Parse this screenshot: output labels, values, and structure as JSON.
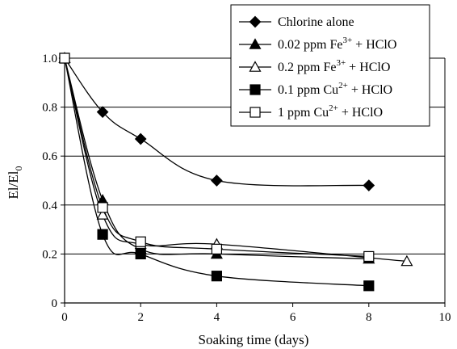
{
  "chart_data": {
    "type": "line",
    "title": "",
    "xlabel": "Soaking time (days)",
    "ylabel": {
      "main": "El/El",
      "sub": "0"
    },
    "xlim": [
      0,
      10
    ],
    "ylim": [
      0,
      1.0
    ],
    "xticks": [
      "0",
      "2",
      "4",
      "6",
      "8",
      "10"
    ],
    "yticks": [
      "0",
      "0.2",
      "0.4",
      "0.6",
      "0.8",
      "1.0"
    ],
    "grid": "horizontal",
    "legend_position": "top-right",
    "series": [
      {
        "name": "Chlorine alone",
        "legend": {
          "pre": "Chlorine alone",
          "sup": "",
          "post": ""
        },
        "marker": "diamond-filled",
        "x": [
          0,
          1,
          2,
          4,
          8
        ],
        "y": [
          1.0,
          0.78,
          0.67,
          0.5,
          0.48
        ]
      },
      {
        "name": "0.02 ppm Fe3+ + HClO",
        "legend": {
          "pre": "0.02 ppm Fe",
          "sup": "3+",
          "post": " + HClO"
        },
        "marker": "triangle-filled",
        "x": [
          0,
          1,
          2,
          4,
          8
        ],
        "y": [
          1.0,
          0.42,
          0.22,
          0.2,
          0.18
        ]
      },
      {
        "name": "0.2 ppm Fe3+ + HClO",
        "legend": {
          "pre": "0.2 ppm Fe",
          "sup": "3+",
          "post": " + HClO"
        },
        "marker": "triangle-open",
        "x": [
          0,
          1,
          2,
          4,
          9
        ],
        "y": [
          1.0,
          0.36,
          0.24,
          0.24,
          0.17
        ]
      },
      {
        "name": "0.1 ppm Cu2+ + HClO",
        "legend": {
          "pre": "0.1 ppm Cu",
          "sup": "2+",
          "post": " + HClO"
        },
        "marker": "square-filled",
        "x": [
          0,
          1,
          2,
          4,
          8
        ],
        "y": [
          1.0,
          0.28,
          0.2,
          0.11,
          0.07
        ]
      },
      {
        "name": "1 ppm Cu2+ + HClO",
        "legend": {
          "pre": "1 ppm Cu",
          "sup": "2+",
          "post": " + HClO"
        },
        "marker": "square-open",
        "x": [
          0,
          1,
          2,
          4,
          8
        ],
        "y": [
          1.0,
          0.39,
          0.25,
          0.22,
          0.19
        ]
      }
    ]
  }
}
